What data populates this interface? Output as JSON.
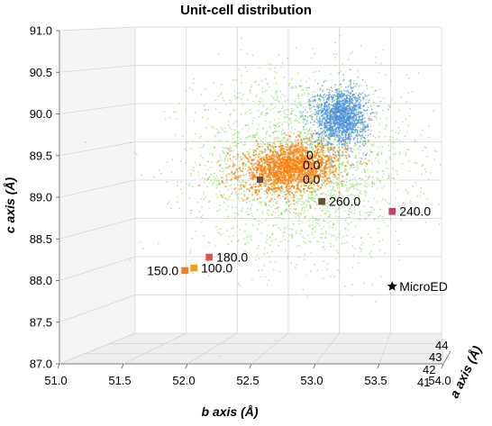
{
  "chart_data": {
    "type": "scatter",
    "projection": "3d",
    "title": "Unit-cell distribution",
    "xlabel": "b axis (Å)",
    "ylabel": "c axis (Å)",
    "zlabel": "a axis (Å)",
    "xlabel_var": "b",
    "xlabel_rest": " axis (Å)",
    "ylabel_var": "c",
    "ylabel_rest": " axis (Å)",
    "zlabel_var": "a",
    "zlabel_rest": " axis (Å)",
    "xlim": [
      51.0,
      54.0
    ],
    "ylim": [
      87.0,
      91.0
    ],
    "zlim": [
      41,
      44
    ],
    "x_ticks": [
      "51.0",
      "51.5",
      "52.0",
      "52.5",
      "53.0",
      "53.5",
      "54.0"
    ],
    "y_ticks": [
      "87.0",
      "87.5",
      "88.0",
      "88.5",
      "89.0",
      "89.5",
      "90.0",
      "90.5",
      "91.0"
    ],
    "z_ticks": [
      "41",
      "42",
      "43",
      "44"
    ],
    "grid": true,
    "colors": {
      "green_cloud": "#7cd64a",
      "orange_cloud": "#ff7f0e",
      "blue_cloud": "#4a90d9",
      "pts_100": "#f29a1a",
      "pts_150": "#f07c1c",
      "pts_180": "#d9534f",
      "pts_240": "#c2416b",
      "pts_260": "#6b4a3a",
      "microed": "#000000"
    },
    "clusters": [
      {
        "color_key": "green_cloud",
        "center": [
          52.9,
          89.4
        ],
        "spread": [
          0.42,
          0.55
        ]
      },
      {
        "color_key": "orange_cloud",
        "center": [
          52.8,
          89.35
        ],
        "spread": [
          0.18,
          0.14
        ]
      },
      {
        "color_key": "blue_cloud",
        "center": [
          53.2,
          89.97
        ],
        "spread": [
          0.1,
          0.17
        ]
      }
    ],
    "labeled_points": [
      {
        "label": "150.0",
        "b": 51.98,
        "c": 88.12,
        "color_key": "pts_150",
        "marker": "square",
        "label_side": "left"
      },
      {
        "label": "100.0",
        "b": 52.05,
        "c": 88.15,
        "color_key": "pts_100",
        "marker": "square",
        "label_side": "right"
      },
      {
        "label": "180.0",
        "b": 52.17,
        "c": 88.28,
        "color_key": "pts_180",
        "marker": "square",
        "label_side": "right"
      },
      {
        "label": "260.0",
        "b": 53.05,
        "c": 88.95,
        "color_key": "pts_260",
        "marker": "square",
        "label_side": "right"
      },
      {
        "label": "240.0",
        "b": 53.6,
        "c": 88.83,
        "color_key": "pts_240",
        "marker": "square",
        "label_side": "right"
      },
      {
        "label": "MicroED",
        "b": 53.6,
        "c": 87.93,
        "color_key": "microed",
        "marker": "star",
        "label_side": "right"
      }
    ],
    "hidden_labels": [
      "0",
      "0.0",
      "0.0"
    ]
  }
}
